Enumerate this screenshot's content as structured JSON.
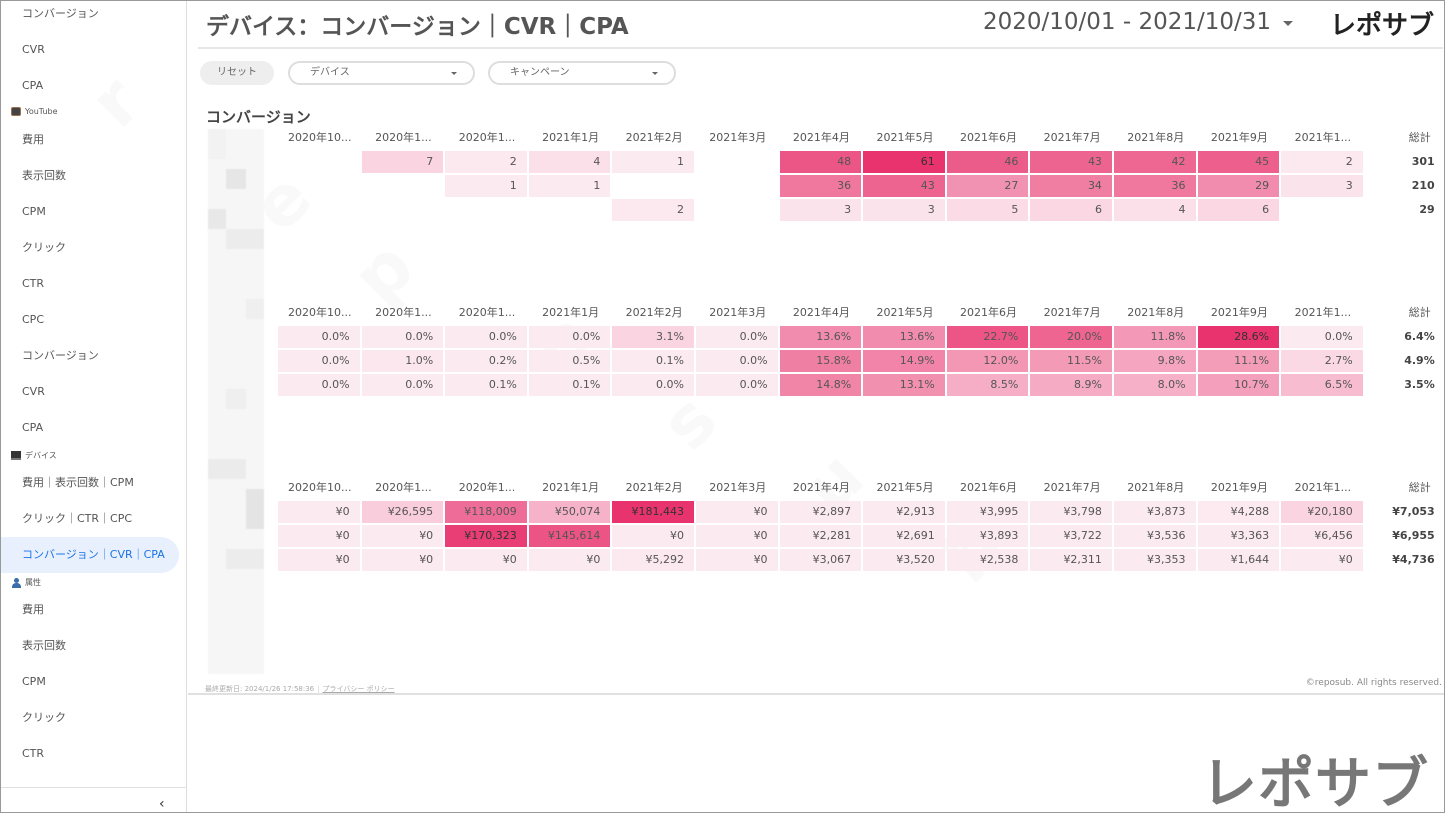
{
  "sidebar": {
    "items_top": [
      {
        "label": "コンバージョン"
      },
      {
        "label": "CVR"
      },
      {
        "label": "CPA"
      }
    ],
    "sections": [
      {
        "label": "YouTube",
        "icon": "tv-icon",
        "items": [
          {
            "label": "費用"
          },
          {
            "label": "表示回数"
          },
          {
            "label": "CPM"
          },
          {
            "label": "クリック"
          },
          {
            "label": "CTR"
          },
          {
            "label": "CPC"
          },
          {
            "label": "コンバージョン"
          },
          {
            "label": "CVR"
          },
          {
            "label": "CPA"
          }
        ]
      },
      {
        "label": "デバイス",
        "icon": "laptop-icon",
        "items": [
          {
            "label": "費用｜表示回数｜CPM"
          },
          {
            "label": "クリック｜CTR｜CPC"
          },
          {
            "label": "コンバージョン｜CVR｜CPA",
            "active": true
          }
        ]
      },
      {
        "label": "属性",
        "icon": "person-icon",
        "items": [
          {
            "label": "費用"
          },
          {
            "label": "表示回数"
          },
          {
            "label": "CPM"
          },
          {
            "label": "クリック"
          },
          {
            "label": "CTR"
          }
        ]
      }
    ],
    "collapse_label": "‹"
  },
  "header": {
    "title": "デバイス：コンバージョン｜CVR｜CPA",
    "date_range": "2020/10/01 - 2021/10/31",
    "brand": "レポサブ"
  },
  "filters": {
    "reset_label": "リセット",
    "device_label": "デバイス",
    "campaign_label": "キャンペーン"
  },
  "section_title": "コンバージョン",
  "columns": [
    "2020年10...",
    "2020年1...",
    "2020年1...",
    "2021年1月",
    "2021年2月",
    "2021年3月",
    "2021年4月",
    "2021年5月",
    "2021年6月",
    "2021年7月",
    "2021年8月",
    "2021年9月",
    "2021年1..."
  ],
  "total_label": "総計",
  "accent_color": "#e8336e",
  "tables": [
    {
      "name": "conversions",
      "rows": [
        {
          "values": [
            "",
            "7",
            "2",
            "4",
            "1",
            "",
            "48",
            "61",
            "46",
            "43",
            "42",
            "45",
            "2"
          ],
          "total": "301"
        },
        {
          "values": [
            "",
            "",
            "1",
            "1",
            "",
            "",
            "36",
            "43",
            "27",
            "34",
            "36",
            "29",
            "3"
          ],
          "total": "210"
        },
        {
          "values": [
            "",
            "",
            "",
            "",
            "2",
            "",
            "3",
            "3",
            "5",
            "6",
            "4",
            "6",
            ""
          ],
          "total": "29"
        }
      ]
    },
    {
      "name": "cvr",
      "rows": [
        {
          "values": [
            "0.0%",
            "0.0%",
            "0.0%",
            "0.0%",
            "3.1%",
            "0.0%",
            "13.6%",
            "13.6%",
            "22.7%",
            "20.0%",
            "11.8%",
            "28.6%",
            "0.0%"
          ],
          "total": "6.4%"
        },
        {
          "values": [
            "0.0%",
            "1.0%",
            "0.2%",
            "0.5%",
            "0.1%",
            "0.0%",
            "15.8%",
            "14.9%",
            "12.0%",
            "11.5%",
            "9.8%",
            "11.1%",
            "2.7%"
          ],
          "total": "4.9%"
        },
        {
          "values": [
            "0.0%",
            "0.0%",
            "0.1%",
            "0.1%",
            "0.0%",
            "0.0%",
            "14.8%",
            "13.1%",
            "8.5%",
            "8.9%",
            "8.0%",
            "10.7%",
            "6.5%"
          ],
          "total": "3.5%"
        }
      ]
    },
    {
      "name": "cpa",
      "rows": [
        {
          "values": [
            "¥0",
            "¥26,595",
            "¥118,009",
            "¥50,074",
            "¥181,443",
            "¥0",
            "¥2,897",
            "¥2,913",
            "¥3,995",
            "¥3,798",
            "¥3,873",
            "¥4,288",
            "¥20,180"
          ],
          "total": "¥7,053"
        },
        {
          "values": [
            "¥0",
            "¥0",
            "¥170,323",
            "¥145,614",
            "¥0",
            "¥0",
            "¥2,281",
            "¥2,691",
            "¥3,893",
            "¥3,722",
            "¥3,536",
            "¥3,363",
            "¥6,456"
          ],
          "total": "¥6,955"
        },
        {
          "values": [
            "¥0",
            "¥0",
            "¥0",
            "¥0",
            "¥5,292",
            "¥0",
            "¥3,067",
            "¥3,520",
            "¥2,538",
            "¥2,311",
            "¥3,353",
            "¥1,644",
            "¥0"
          ],
          "total": "¥4,736"
        }
      ]
    }
  ],
  "footer": {
    "last_updated": "最終更新日: 2024/1/26 17:58:36",
    "privacy_link": "プライバシー ポリシー",
    "copyright": "©reposub. All rights reserved."
  },
  "watermark_brand": "レポサブ"
}
